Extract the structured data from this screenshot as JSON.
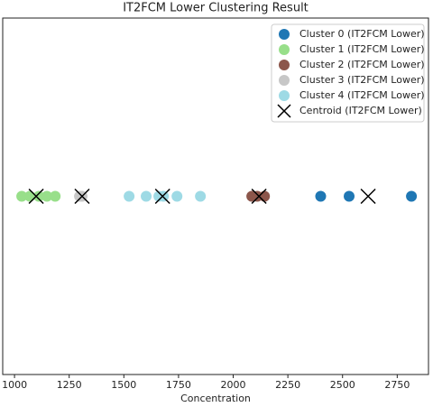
{
  "chart_data": {
    "type": "scatter",
    "title": "IT2FCM Lower Clustering Result",
    "x_label": "Concentration",
    "xlim": [
      946,
      2893
    ],
    "ylim": [
      -1,
      1
    ],
    "xticks": [
      1000,
      1250,
      1500,
      1750,
      2000,
      2250,
      2500,
      2750
    ],
    "legend": "upper right",
    "series": [
      {
        "name": "Cluster 0 (IT2FCM Lower)",
        "color": "#1f77b4",
        "marker": "o",
        "x": [
          2400,
          2530,
          2815
        ],
        "y": [
          0,
          0,
          0
        ]
      },
      {
        "name": "Cluster 1 (IT2FCM Lower)",
        "color": "#98df8a",
        "marker": "o",
        "x": [
          1033,
          1070,
          1111,
          1148,
          1186
        ],
        "y": [
          0,
          0,
          0,
          0,
          0
        ]
      },
      {
        "name": "Cluster 2 (IT2FCM Lower)",
        "color": "#8c564b",
        "marker": "o",
        "x": [
          2085,
          2110,
          2143
        ],
        "y": [
          0,
          0,
          0
        ]
      },
      {
        "name": "Cluster 3 (IT2FCM Lower)",
        "color": "#c7c7c7",
        "marker": "o",
        "x": [
          1297,
          1309
        ],
        "y": [
          0,
          0
        ]
      },
      {
        "name": "Cluster 4 (IT2FCM Lower)",
        "color": "#9edae5",
        "marker": "o",
        "x": [
          1524,
          1602,
          1660,
          1681,
          1743,
          1850
        ],
        "y": [
          0,
          0,
          0,
          0,
          0,
          0
        ]
      },
      {
        "name": "Centroid (IT2FCM Lower)",
        "color": "#000000",
        "marker": "x",
        "x": [
          1099,
          1309,
          1677,
          2118,
          2617
        ],
        "y": [
          0,
          0,
          0,
          0,
          0
        ]
      }
    ]
  }
}
